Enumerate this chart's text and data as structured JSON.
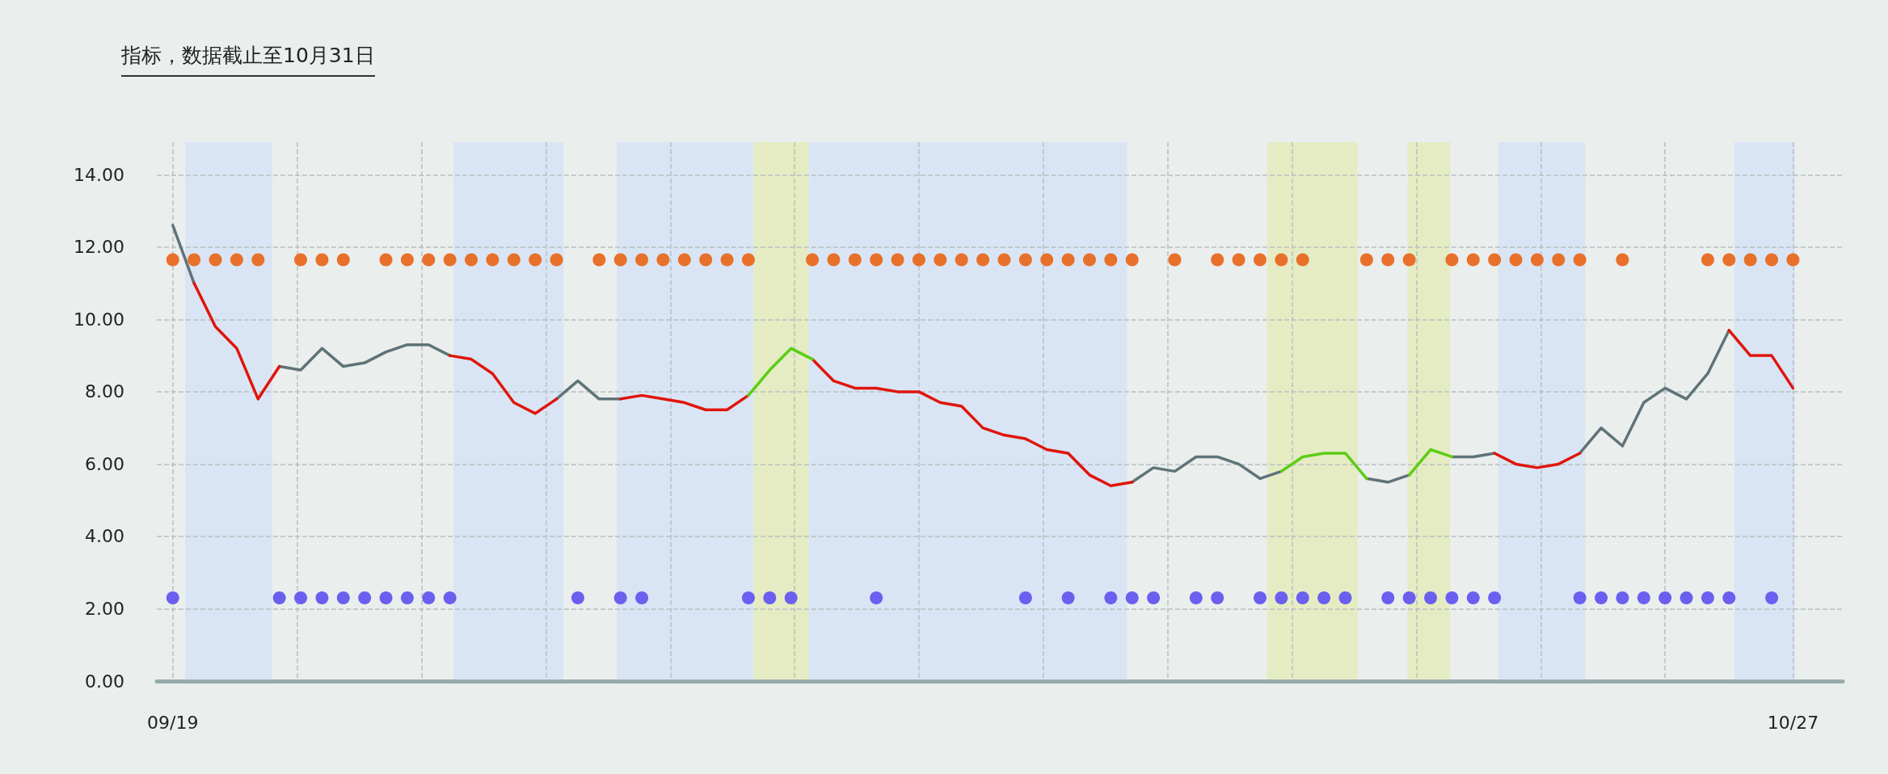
{
  "chart_data": {
    "type": "line",
    "title": "指标，数据截止至10月31日",
    "x": [
      "--09-19T00:00",
      "--09-19T12:00",
      "--09-20T00:00",
      "--09-20T12:00",
      "--09-21T00:00",
      "--09-21T12:00",
      "--09-22T00:00",
      "--09-22T12:00",
      "--09-23T00:00",
      "--09-23T12:00",
      "--09-24T00:00",
      "--09-24T12:00",
      "--09-25T00:00",
      "--09-25T12:00",
      "--09-26T00:00",
      "--09-26T12:00",
      "--09-27T00:00",
      "--09-27T12:00",
      "--09-28T00:00",
      "--09-28T12:00",
      "--09-29T00:00",
      "--09-29T12:00",
      "--09-30T00:00",
      "--09-30T12:00",
      "--10-01T00:00",
      "--10-01T12:00",
      "--10-02T00:00",
      "--10-02T12:00",
      "--10-03T00:00",
      "--10-03T12:00",
      "--10-04T00:00",
      "--10-04T12:00",
      "--10-05T00:00",
      "--10-05T12:00",
      "--10-06T00:00",
      "--10-06T12:00",
      "--10-07T00:00",
      "--10-07T12:00",
      "--10-08T00:00",
      "--10-08T12:00",
      "--10-09T00:00",
      "--10-09T12:00",
      "--10-10T00:00",
      "--10-10T12:00",
      "--10-11T00:00",
      "--10-11T12:00",
      "--10-12T00:00",
      "--10-12T12:00",
      "--10-13T00:00",
      "--10-13T12:00",
      "--10-14T00:00",
      "--10-14T12:00",
      "--10-15T00:00",
      "--10-15T12:00",
      "--10-16T00:00",
      "--10-16T12:00",
      "--10-17T00:00",
      "--10-17T12:00",
      "--10-18T00:00",
      "--10-18T12:00",
      "--10-19T00:00",
      "--10-19T12:00",
      "--10-20T00:00",
      "--10-20T12:00",
      "--10-21T00:00",
      "--10-21T12:00",
      "--10-22T00:00",
      "--10-22T12:00",
      "--10-23T00:00",
      "--10-23T12:00",
      "--10-24T00:00",
      "--10-24T12:00",
      "--10-25T00:00",
      "--10-25T12:00",
      "--10-26T00:00",
      "--10-26T12:00",
      "--10-27T00:00"
    ],
    "series": [
      {
        "type": "line",
        "marker": "none",
        "color": "#5f7378",
        "values": [
          12.6,
          11.0,
          null,
          null,
          null,
          8.7,
          8.6,
          9.2,
          8.7,
          8.8,
          9.1,
          9.3,
          9.3,
          9.0,
          null,
          null,
          null,
          null,
          7.8,
          8.3,
          7.8,
          7.8,
          null,
          null,
          null,
          null,
          null,
          null,
          null,
          null,
          null,
          null,
          null,
          null,
          null,
          null,
          null,
          null,
          null,
          null,
          null,
          null,
          null,
          null,
          null,
          5.5,
          5.9,
          5.8,
          6.2,
          6.2,
          6.0,
          5.6,
          5.8,
          null,
          null,
          null,
          5.6,
          5.5,
          5.7,
          null,
          6.2,
          6.2,
          6.3,
          null,
          null,
          null,
          6.3,
          7.0,
          6.5,
          7.7,
          8.1,
          7.8,
          8.5,
          9.7,
          null,
          null,
          null
        ]
      },
      {
        "type": "line",
        "marker": "none",
        "color": "#e0150c",
        "values": [
          null,
          11.0,
          9.8,
          9.2,
          7.8,
          8.7,
          null,
          null,
          null,
          null,
          null,
          null,
          null,
          9.0,
          8.9,
          8.5,
          7.7,
          7.4,
          7.8,
          null,
          null,
          7.8,
          7.9,
          7.8,
          7.7,
          7.5,
          7.5,
          7.9,
          null,
          null,
          8.9,
          8.3,
          8.1,
          8.1,
          8.0,
          8.0,
          7.7,
          7.6,
          7.0,
          6.8,
          6.7,
          6.4,
          6.3,
          5.7,
          5.4,
          5.5,
          null,
          null,
          null,
          null,
          null,
          null,
          null,
          null,
          null,
          null,
          null,
          null,
          null,
          null,
          null,
          null,
          6.3,
          6.0,
          5.9,
          6.0,
          6.3,
          null,
          null,
          null,
          null,
          null,
          null,
          9.7,
          9.0,
          9.0,
          8.1
        ]
      },
      {
        "type": "line",
        "marker": "none",
        "color": "#5ccd15",
        "values": [
          null,
          null,
          null,
          null,
          null,
          null,
          null,
          null,
          null,
          null,
          null,
          null,
          null,
          null,
          null,
          null,
          null,
          null,
          null,
          null,
          null,
          null,
          null,
          null,
          null,
          null,
          null,
          7.9,
          8.6,
          9.2,
          8.9,
          null,
          null,
          null,
          null,
          null,
          null,
          null,
          null,
          null,
          null,
          null,
          null,
          null,
          null,
          null,
          null,
          null,
          null,
          null,
          null,
          null,
          5.8,
          6.2,
          6.3,
          6.3,
          5.6,
          null,
          5.7,
          6.4,
          6.2,
          null,
          null,
          null,
          null,
          null,
          null,
          null,
          null,
          null,
          null,
          null,
          null,
          null,
          null,
          null,
          null
        ]
      },
      {
        "type": "scatter",
        "marker": "circle",
        "color": "#e8702a",
        "values": [
          11.65,
          11.65,
          11.65,
          11.65,
          11.65,
          null,
          11.65,
          11.65,
          11.65,
          null,
          11.65,
          11.65,
          11.65,
          11.65,
          11.65,
          11.65,
          11.65,
          11.65,
          11.65,
          null,
          11.65,
          11.65,
          11.65,
          11.65,
          11.65,
          11.65,
          11.65,
          11.65,
          null,
          null,
          11.65,
          11.65,
          11.65,
          11.65,
          11.65,
          11.65,
          11.65,
          11.65,
          11.65,
          11.65,
          11.65,
          11.65,
          11.65,
          11.65,
          11.65,
          11.65,
          null,
          11.65,
          null,
          11.65,
          11.65,
          11.65,
          11.65,
          11.65,
          null,
          null,
          11.65,
          11.65,
          11.65,
          null,
          11.65,
          11.65,
          11.65,
          11.65,
          11.65,
          11.65,
          11.65,
          null,
          11.65,
          null,
          null,
          null,
          11.65,
          11.65,
          11.65,
          11.65,
          11.65
        ]
      },
      {
        "type": "scatter",
        "marker": "circle",
        "color": "#6b5ff0",
        "values": [
          2.3,
          null,
          null,
          null,
          null,
          2.3,
          2.3,
          2.3,
          2.3,
          2.3,
          2.3,
          2.3,
          2.3,
          2.3,
          null,
          null,
          null,
          null,
          null,
          2.3,
          null,
          2.3,
          2.3,
          null,
          null,
          null,
          null,
          2.3,
          2.3,
          2.3,
          null,
          null,
          null,
          2.3,
          null,
          null,
          null,
          null,
          null,
          null,
          2.3,
          null,
          2.3,
          null,
          2.3,
          2.3,
          2.3,
          null,
          2.3,
          2.3,
          null,
          2.3,
          2.3,
          2.3,
          2.3,
          2.3,
          null,
          2.3,
          2.3,
          2.3,
          2.3,
          2.3,
          2.3,
          null,
          null,
          null,
          2.3,
          2.3,
          2.3,
          2.3,
          2.3,
          2.3,
          2.3,
          2.3,
          null,
          2.3,
          null
        ]
      }
    ],
    "bands": [
      {
        "axis": "x",
        "from": "--09-19T07:00",
        "to": "--09-21T08:00",
        "color": "#d9e5f4"
      },
      {
        "axis": "x",
        "from": "--09-25T14:00",
        "to": "--09-28T04:00",
        "color": "#d9e5f4"
      },
      {
        "axis": "x",
        "from": "--09-29T10:00",
        "to": "--10-02T15:00",
        "color": "#d9e5f4"
      },
      {
        "axis": "x",
        "from": "--10-02T15:00",
        "to": "--10-03T22:00",
        "color": "#e5ecc3"
      },
      {
        "axis": "x",
        "from": "--10-03T22:00",
        "to": "--10-11T09:00",
        "color": "#d9e5f4"
      },
      {
        "axis": "x",
        "from": "--10-14T16:00",
        "to": "--10-16T19:00",
        "color": "#e5ecc3"
      },
      {
        "axis": "x",
        "from": "--10-17T23:00",
        "to": "--10-18T23:00",
        "color": "#e5ecc3"
      },
      {
        "axis": "x",
        "from": "--10-20T02:00",
        "to": "--10-22T03:00",
        "color": "#d9e5f4"
      },
      {
        "axis": "x",
        "from": "--10-25T15:00",
        "to": "--10-27T01:00",
        "color": "#d9e5f4"
      }
    ],
    "xlim": [
      "--09-18T15:00",
      "--10-28T04:00"
    ],
    "xticks": [
      {
        "value": "--09-19T00:00",
        "label": "09/19"
      },
      {
        "value": "--09-21T22:00",
        "label": null
      },
      {
        "value": "--09-24T20:00",
        "label": null
      },
      {
        "value": "--09-27T18:00",
        "label": null
      },
      {
        "value": "--09-30T16:00",
        "label": null
      },
      {
        "value": "--10-03T14:00",
        "label": null
      },
      {
        "value": "--10-06T12:00",
        "label": null
      },
      {
        "value": "--10-09T10:00",
        "label": null
      },
      {
        "value": "--10-12T08:00",
        "label": null
      },
      {
        "value": "--10-15T06:00",
        "label": null
      },
      {
        "value": "--10-18T04:00",
        "label": null
      },
      {
        "value": "--10-21T02:00",
        "label": null
      },
      {
        "value": "--10-24T00:00",
        "label": null
      },
      {
        "value": "--10-27T00:00",
        "label": "10/27"
      }
    ],
    "ylim": [
      0,
      14.9
    ],
    "yticks": [
      {
        "value": 0,
        "label": "0.00"
      },
      {
        "value": 2,
        "label": "2.00"
      },
      {
        "value": 4,
        "label": "4.00"
      },
      {
        "value": 6,
        "label": "6.00"
      },
      {
        "value": 8,
        "label": "8.00"
      },
      {
        "value": 10,
        "label": "10.00"
      },
      {
        "value": 12,
        "label": "12.00"
      },
      {
        "value": 14,
        "label": "14.00"
      }
    ],
    "grid": true
  }
}
